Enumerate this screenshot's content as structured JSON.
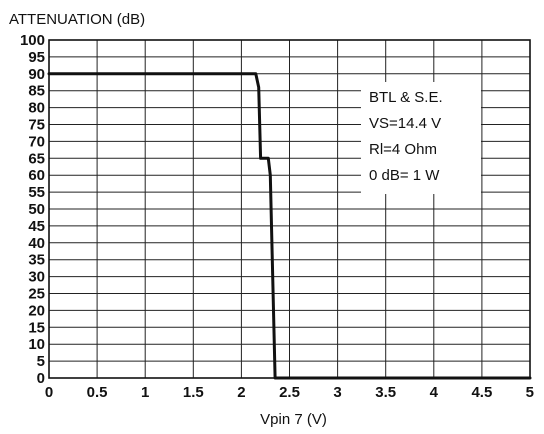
{
  "chart_data": {
    "type": "line",
    "title": "",
    "ylabel": "ATTENUATION (dB)",
    "xlabel": "Vpin 7 (V)",
    "xlim": [
      0,
      5
    ],
    "ylim": [
      0,
      100
    ],
    "x_ticks": [
      "0",
      "0.5",
      "1",
      "1.5",
      "2",
      "2.5",
      "3",
      "3.5",
      "4",
      "4.5",
      "5"
    ],
    "y_ticks": [
      "100",
      "95",
      "90",
      "85",
      "80",
      "75",
      "70",
      "65",
      "60",
      "55",
      "50",
      "45",
      "40",
      "35",
      "30",
      "25",
      "20",
      "15",
      "10",
      "5",
      "0"
    ],
    "grid": true,
    "series": [
      {
        "color": "#111111",
        "points": [
          {
            "x": 0,
            "y": 90
          },
          {
            "x": 2.15,
            "y": 90
          },
          {
            "x": 2.18,
            "y": 86
          },
          {
            "x": 2.2,
            "y": 65
          },
          {
            "x": 2.28,
            "y": 65
          },
          {
            "x": 2.3,
            "y": 60
          },
          {
            "x": 2.35,
            "y": 0
          },
          {
            "x": 5,
            "y": 0
          }
        ]
      }
    ],
    "annotations": [
      "BTL & S.E.",
      "VS=14.4 V",
      "Rl=4 Ohm",
      "0 dB= 1 W"
    ]
  }
}
